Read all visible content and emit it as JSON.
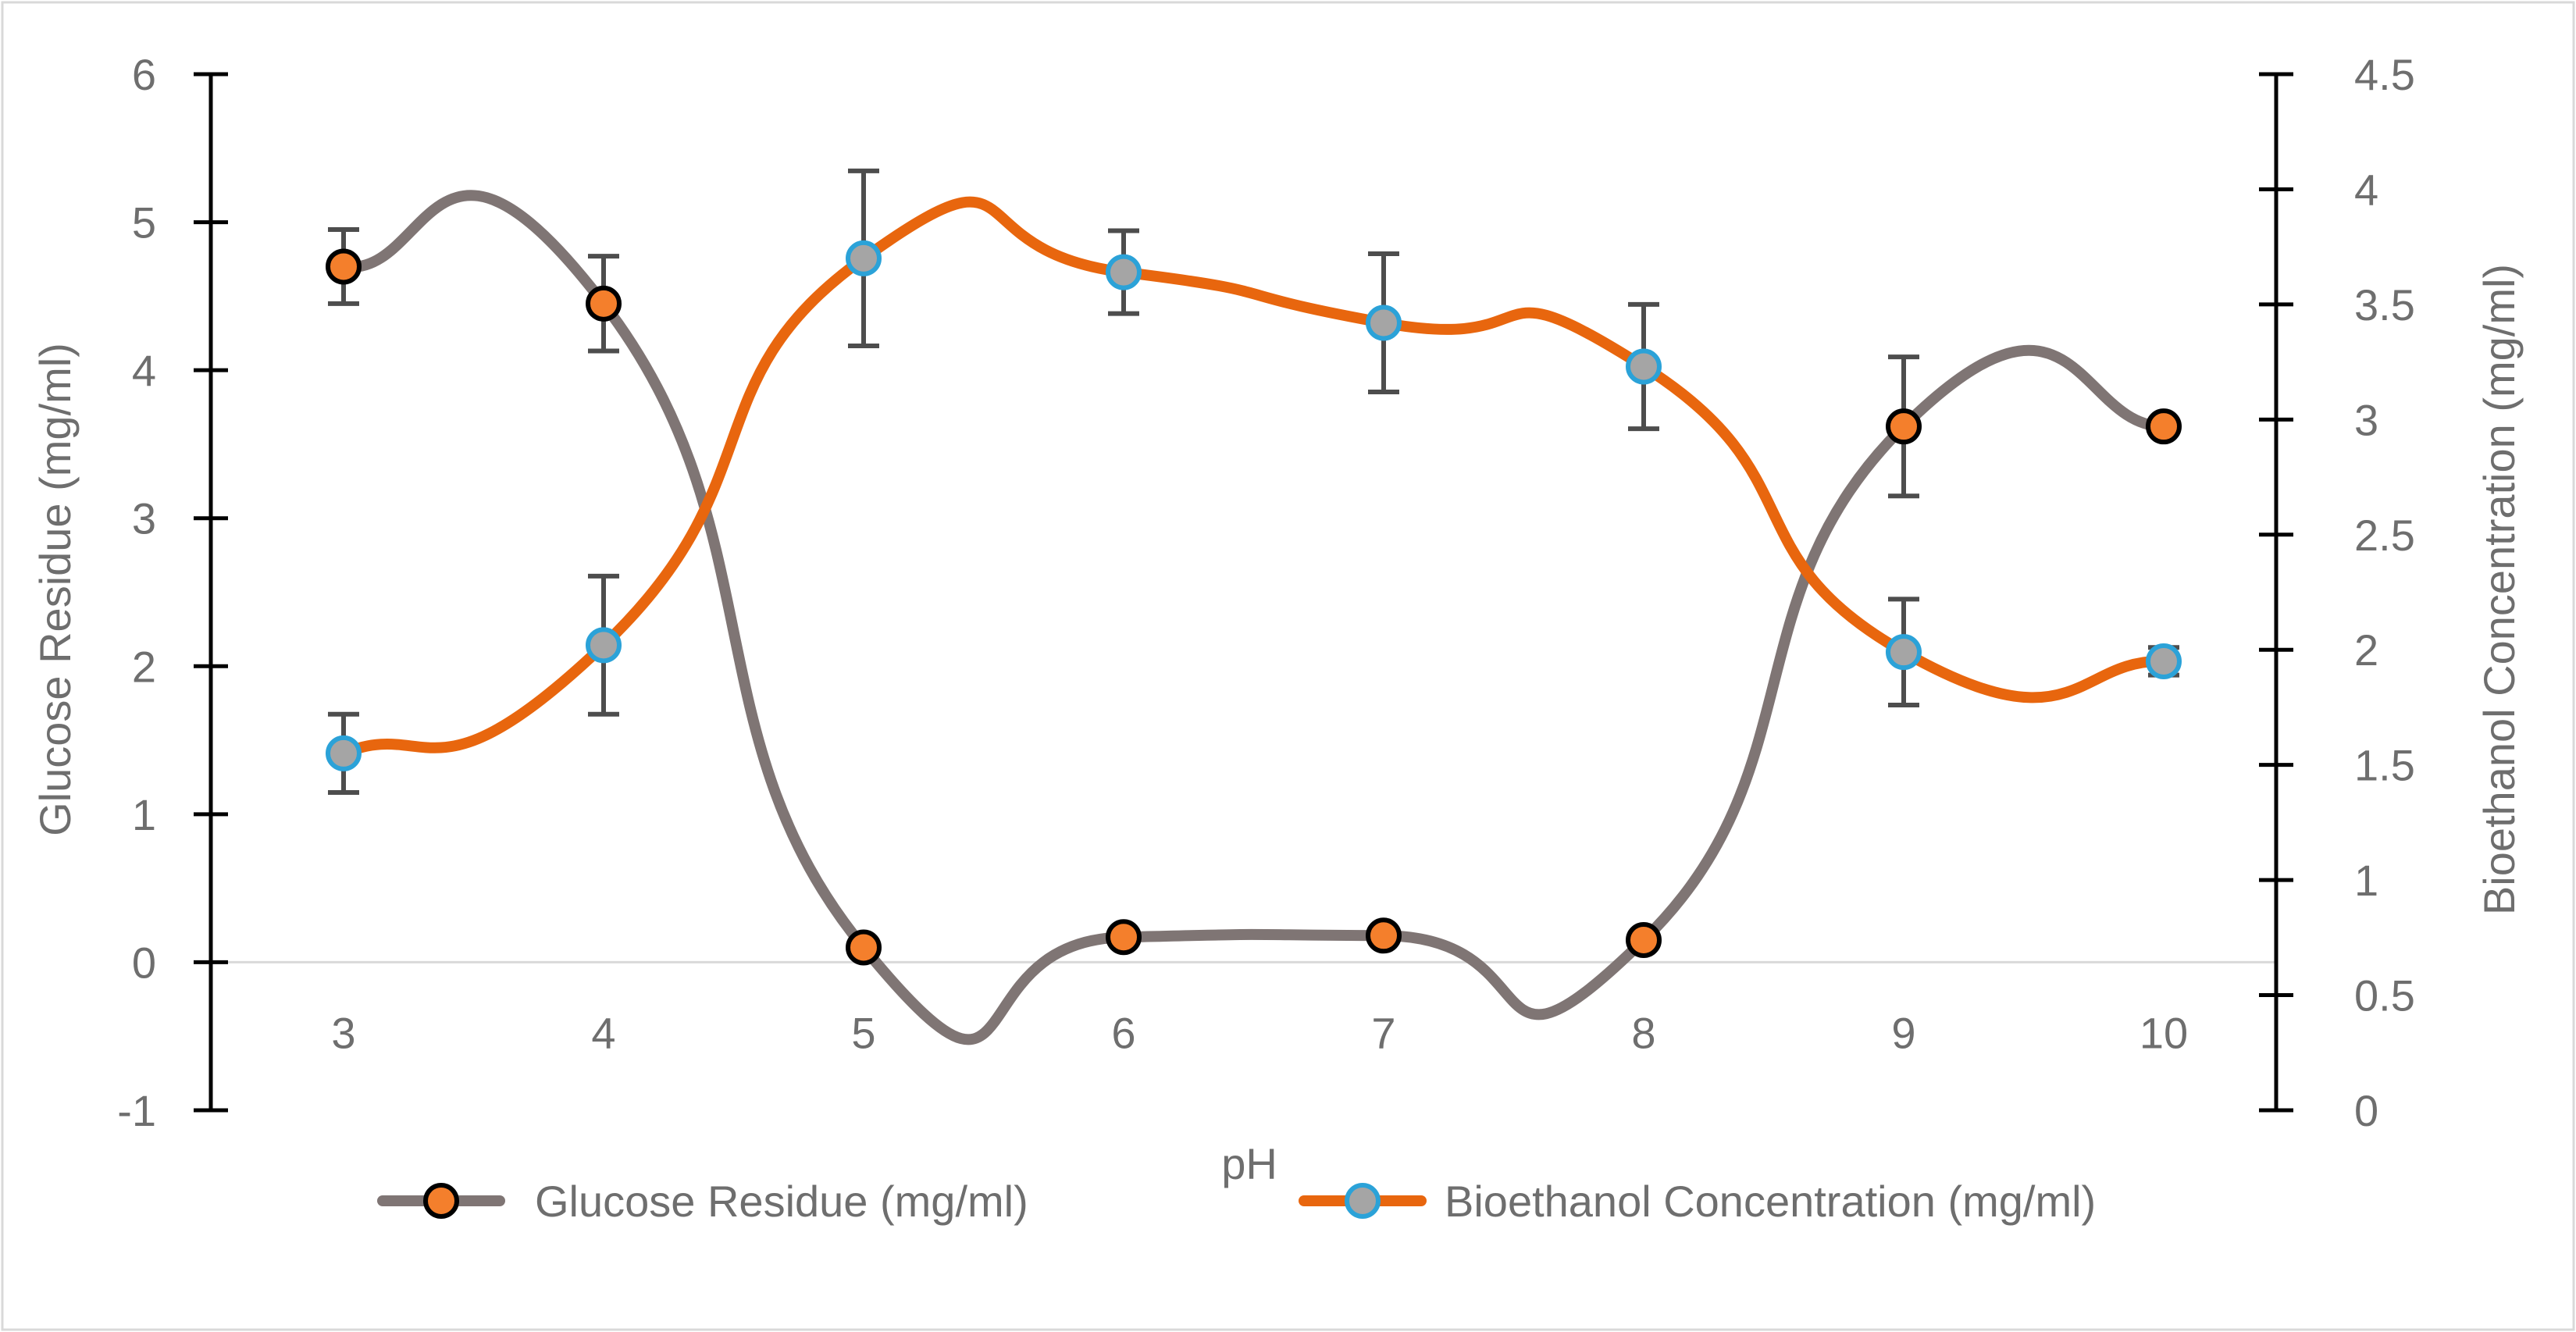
{
  "colors": {
    "glucose_line": "#7F7574",
    "glucose_marker_fill": "#F47F2C",
    "glucose_marker_edge": "#000000",
    "bioethanol_line": "#E8660E",
    "bioethanol_marker_fill": "#A5A5A5",
    "bioethanol_marker_edge": "#2BA2D8",
    "axis": "#000000",
    "text": "#6E6E6E",
    "error_bar": "#4D4D4D",
    "zero_line": "#D9D9D9",
    "frame": "#D9D9D9"
  },
  "chart_data": {
    "type": "line",
    "title": "",
    "xlabel": "pH",
    "ylabel": "Glucose Residue (mg/ml)",
    "y2label": "Bioethanol Concentration (mg/ml)",
    "categories": [
      "3",
      "4",
      "5",
      "6",
      "7",
      "8",
      "9",
      "10"
    ],
    "x": [
      3,
      4,
      5,
      6,
      7,
      8,
      9,
      10
    ],
    "ylim": [
      -1,
      6
    ],
    "y2lim": [
      0,
      4.5
    ],
    "yticks": [
      "-1",
      "0",
      "1",
      "2",
      "3",
      "4",
      "5",
      "6"
    ],
    "y2ticks": [
      "0",
      "0.5",
      "1",
      "1.5",
      "2",
      "2.5",
      "3",
      "3.5",
      "4",
      "4.5"
    ],
    "grid": false,
    "legend": "bottom",
    "series": [
      {
        "name": "Glucose Residue (mg/ml)",
        "axis": "left",
        "values": [
          4.7,
          4.45,
          0.1,
          0.17,
          0.18,
          0.15,
          3.62,
          3.62
        ],
        "errors": [
          0.25,
          0.32,
          0,
          0,
          0,
          0,
          0.47,
          0
        ]
      },
      {
        "name": "Bioethanol Concentration (mg/ml)",
        "axis": "right",
        "values": [
          1.55,
          2.02,
          3.7,
          3.64,
          3.42,
          3.23,
          1.99,
          1.95
        ],
        "errors": [
          0.17,
          0.3,
          0.38,
          0.18,
          0.3,
          0.27,
          0.23,
          0.06
        ]
      }
    ]
  }
}
